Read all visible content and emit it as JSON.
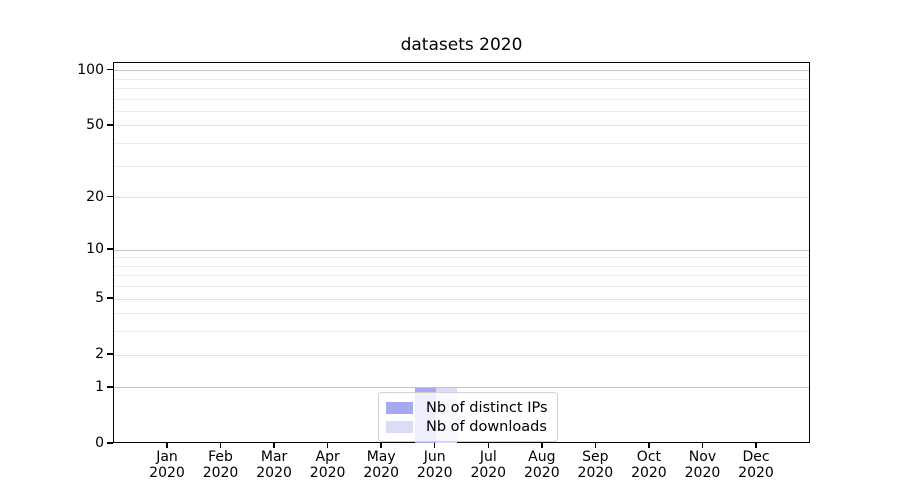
{
  "chart_data": {
    "type": "bar",
    "title": "datasets 2020",
    "xlabel": "",
    "ylabel": "",
    "categories": [
      "Jan",
      "Feb",
      "Mar",
      "Apr",
      "May",
      "Jun",
      "Jul",
      "Aug",
      "Sep",
      "Oct",
      "Nov",
      "Dec"
    ],
    "category_year": "2020",
    "series": [
      {
        "name": "Nb of distinct IPs",
        "color": "#a8a9f0",
        "values": [
          0,
          0,
          0,
          0,
          0,
          1,
          0,
          0,
          0,
          0,
          0,
          0
        ]
      },
      {
        "name": "Nb of downloads",
        "color": "#dbdcf8",
        "values": [
          0,
          0,
          0,
          0,
          0,
          1,
          0,
          0,
          0,
          0,
          0,
          0
        ]
      }
    ],
    "y_axis": {
      "scale": "log1p",
      "ylim": [
        0,
        110
      ],
      "major_ticks": [
        0,
        1,
        2,
        5,
        10,
        20,
        50,
        100
      ],
      "emphasized_gridlines": [
        1,
        10,
        100
      ],
      "minor_gridlines": [
        3,
        4,
        6,
        7,
        8,
        9,
        30,
        40,
        60,
        70,
        80,
        90
      ]
    },
    "grid": true,
    "legend_position": "lower center",
    "colors": {
      "spine": "#000000",
      "grid_major": "#c6c6c6",
      "grid_minor": "#ebebeb",
      "background": "#ffffff"
    }
  }
}
